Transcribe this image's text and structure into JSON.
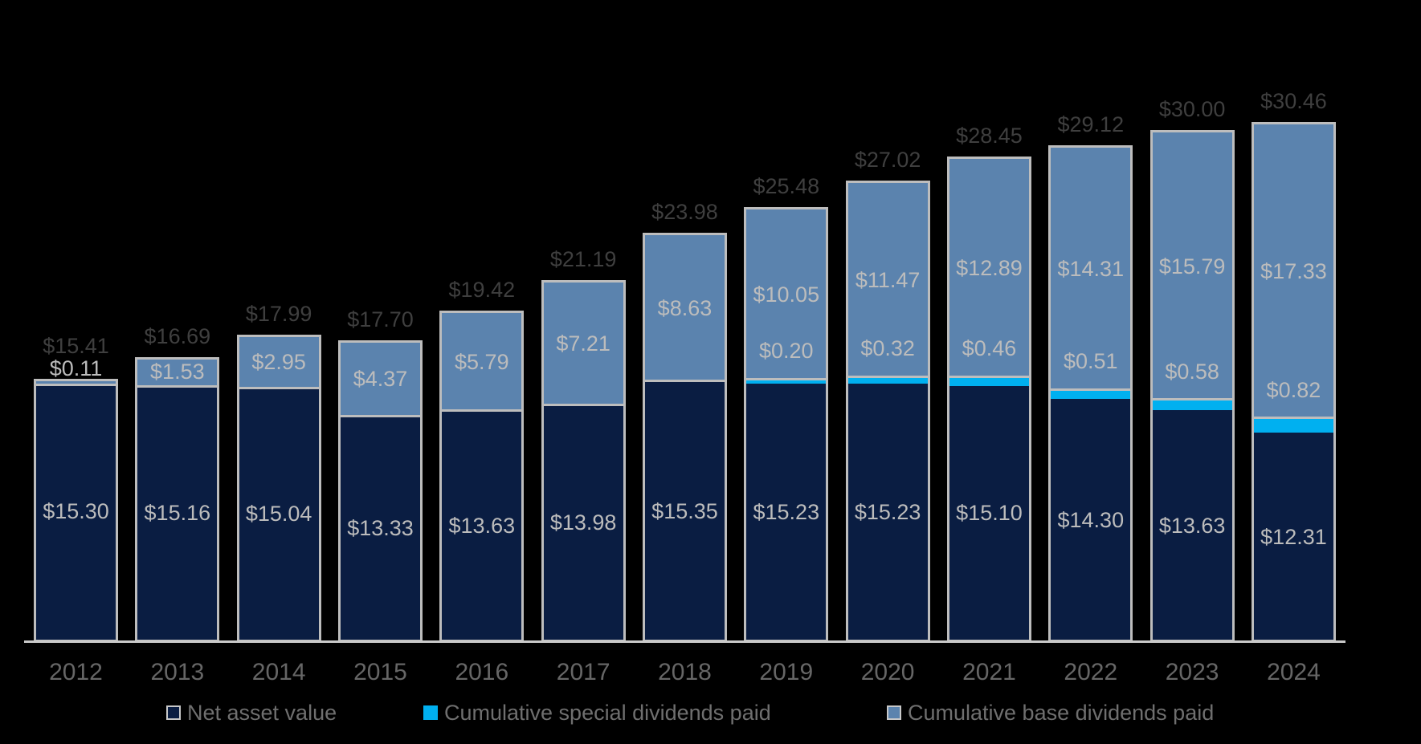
{
  "colors": {
    "background": "#000000",
    "navy": "#0a1d42",
    "cyan": "#00b0f0",
    "steel_blue": "#5b83ae",
    "bar_border": "#bdbdbd",
    "axis_line": "#c9c9c9",
    "inner_label": "#bcbcbc",
    "total_label": "#3f3f3f",
    "tick_label": "#666666",
    "legend_text": "#6f6f6f"
  },
  "chart_data": {
    "type": "bar",
    "stacked": true,
    "title": "",
    "xlabel": "",
    "ylabel": "",
    "grid": false,
    "ylim": [
      0,
      32
    ],
    "legend_position": "bottom",
    "categories": [
      "2012",
      "2013",
      "2014",
      "2015",
      "2016",
      "2017",
      "2018",
      "2019",
      "2020",
      "2021",
      "2022",
      "2023",
      "2024"
    ],
    "series": [
      {
        "name": "Net asset value",
        "color": "#0a1d42",
        "values": [
          15.3,
          15.16,
          15.04,
          13.33,
          13.63,
          13.98,
          15.35,
          15.23,
          15.23,
          15.1,
          14.3,
          13.63,
          12.31
        ]
      },
      {
        "name": "Cumulative special dividends paid",
        "color": "#00b0f0",
        "values": [
          0,
          0,
          0,
          0,
          0,
          0,
          0,
          0.2,
          0.32,
          0.46,
          0.51,
          0.58,
          0.82
        ]
      },
      {
        "name": "Cumulative base dividends paid",
        "color": "#5b83ae",
        "values": [
          0.11,
          1.53,
          2.95,
          4.37,
          5.79,
          7.21,
          8.63,
          10.05,
          11.47,
          12.89,
          14.31,
          15.79,
          17.33
        ]
      }
    ],
    "totals": [
      15.41,
      16.69,
      17.99,
      17.7,
      19.42,
      21.19,
      23.98,
      25.48,
      27.02,
      28.45,
      29.12,
      30.0,
      30.46
    ],
    "value_labels": {
      "net_asset_value": [
        "$15.30",
        "$15.16",
        "$15.04",
        "$13.33",
        "$13.63",
        "$13.98",
        "$15.35",
        "$15.23",
        "$15.23",
        "$15.10",
        "$14.30",
        "$13.63",
        "$12.31"
      ],
      "special_dividends": [
        "",
        "",
        "",
        "",
        "",
        "",
        "",
        "$0.20",
        "$0.32",
        "$0.46",
        "$0.51",
        "$0.58",
        "$0.82"
      ],
      "base_dividends": [
        "$0.11",
        "$1.53",
        "$2.95",
        "$4.37",
        "$5.79",
        "$7.21",
        "$8.63",
        "$10.05",
        "$11.47",
        "$12.89",
        "$14.31",
        "$15.79",
        "$17.33"
      ],
      "totals": [
        "$15.41",
        "$16.69",
        "$17.99",
        "$17.70",
        "$19.42",
        "$21.19",
        "$23.98",
        "$25.48",
        "$27.02",
        "$28.45",
        "$29.12",
        "$30.00",
        "$30.46"
      ]
    }
  },
  "legend": {
    "items": [
      {
        "label": "Net asset value",
        "color": "#0a1d42",
        "border": "#c8c8c8"
      },
      {
        "label": "Cumulative special dividends paid",
        "color": "#00b0f0",
        "border": ""
      },
      {
        "label": "Cumulative base dividends paid",
        "color": "#5b83ae",
        "border": "#c8c8c8"
      }
    ]
  }
}
